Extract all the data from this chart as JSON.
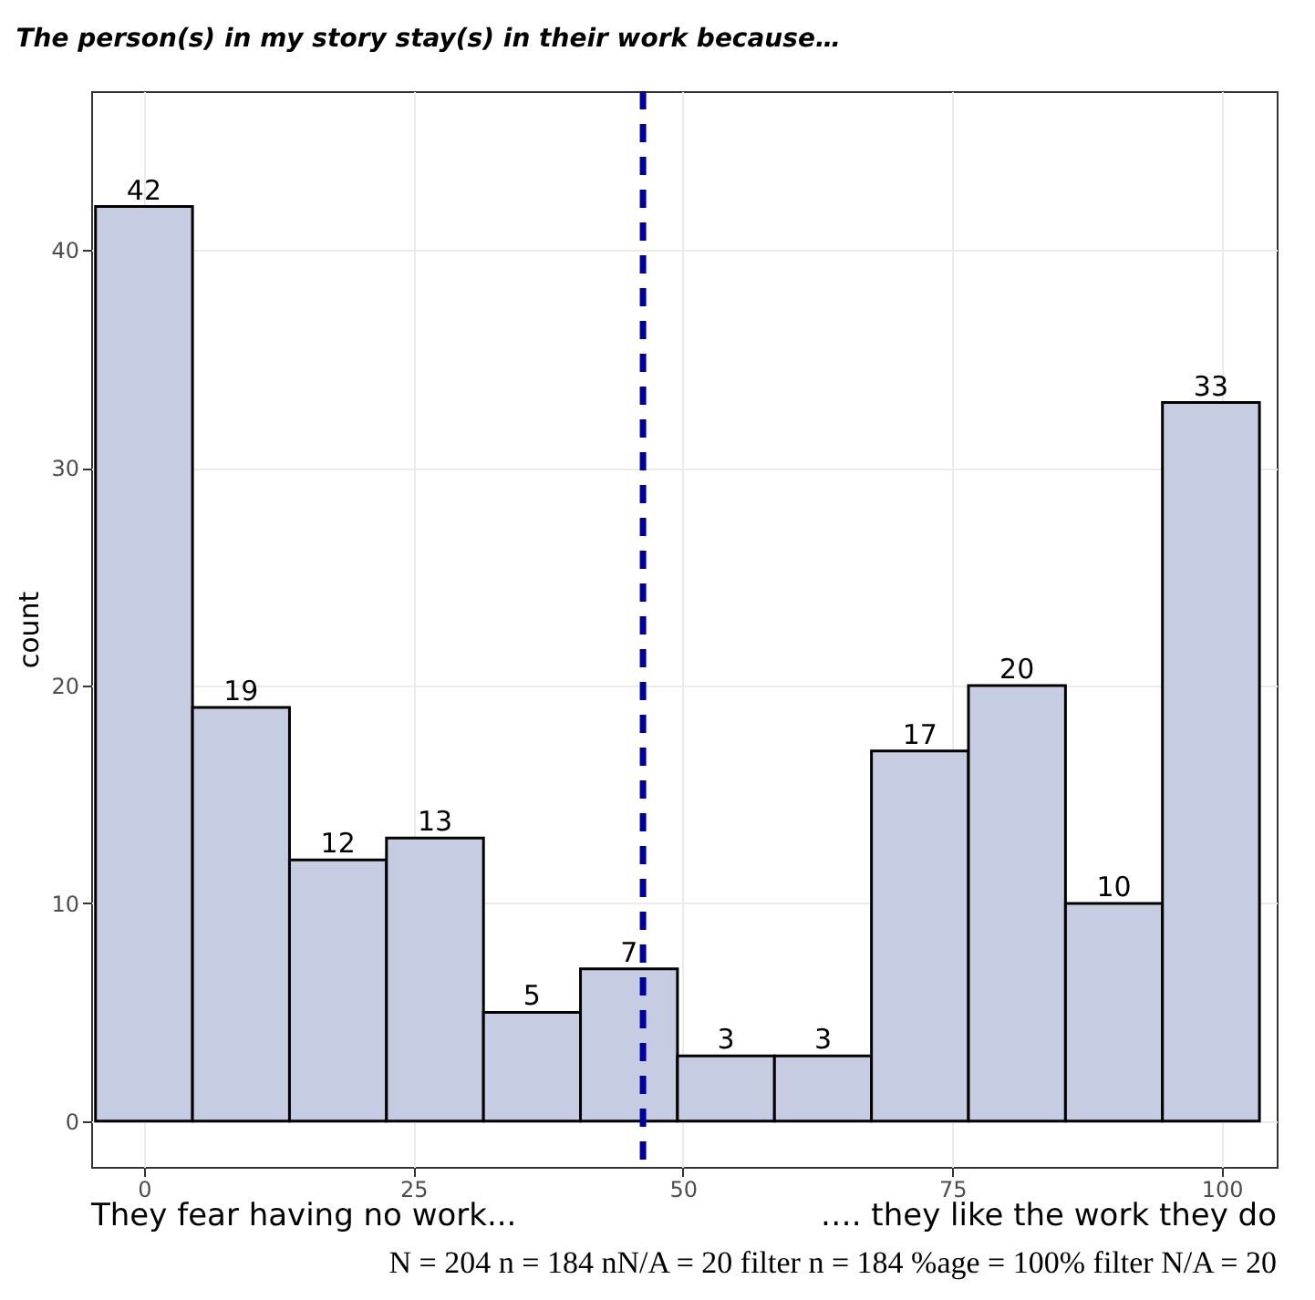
{
  "chart_data": {
    "type": "histogram",
    "title": "The person(s) in my story stay(s) in their work because…",
    "ylabel": "count",
    "bins": [
      -4.5,
      4.5,
      13.5,
      22.5,
      31.5,
      40.5,
      49.5,
      58.5,
      67.5,
      76.5,
      85.5,
      94.5,
      103.5
    ],
    "values": [
      42,
      19,
      12,
      13,
      5,
      7,
      3,
      3,
      17,
      20,
      10,
      33
    ],
    "color": "#c6cde3",
    "data_labels": true,
    "xlim": [
      -4.9,
      105.1
    ],
    "ylim": [
      -2.1,
      47.3
    ],
    "xticks": [
      0,
      25,
      50,
      75,
      100
    ],
    "yticks": [
      0,
      10,
      20,
      30,
      40
    ],
    "grid": true,
    "ref_lines": [
      {
        "axis": "x",
        "value": 46.3,
        "color": "#00009c",
        "line_style": "dashed"
      }
    ],
    "annotations": [
      "They fear having no work...",
      "…. they like the work they do",
      "N = 204 n = 184  nN/A = 20  filter n = 184  %age = 100%  filter N/A = 20"
    ]
  }
}
